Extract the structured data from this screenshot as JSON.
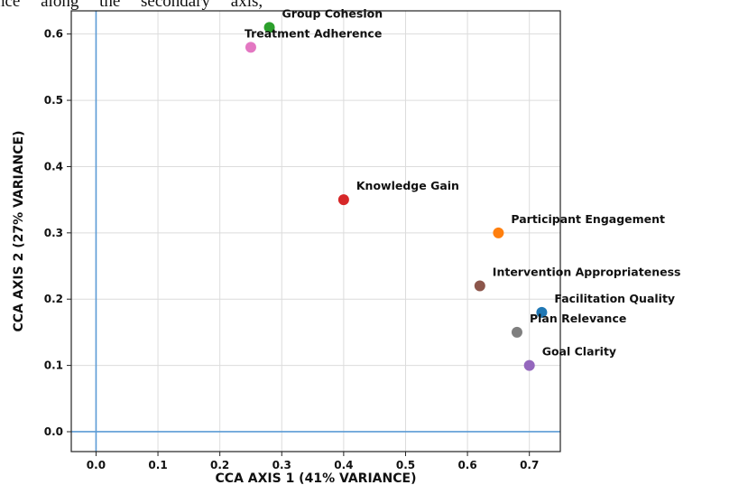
{
  "header_text": "nce along the secondary axis,",
  "chart_data": {
    "type": "scatter",
    "xlabel": "CCA AXIS 1 (41% VARIANCE)",
    "ylabel": "CCA AXIS 2 (27% VARIANCE)",
    "xlim": [
      -0.04,
      0.75
    ],
    "ylim": [
      -0.03,
      0.635
    ],
    "x_ticks": [
      0.0,
      0.1,
      0.2,
      0.3,
      0.4,
      0.5,
      0.6,
      0.7
    ],
    "x_tick_labels": [
      "0.0",
      "0.1",
      "0.2",
      "0.3",
      "0.4",
      "0.5",
      "0.6",
      "0.7"
    ],
    "y_ticks": [
      0.0,
      0.1,
      0.2,
      0.3,
      0.4,
      0.5,
      0.6
    ],
    "y_tick_labels": [
      "0.0",
      "0.1",
      "0.2",
      "0.3",
      "0.4",
      "0.5",
      "0.6"
    ],
    "grid": true,
    "reference_lines": {
      "x": 0,
      "y": 0,
      "color": "#5b9bd5"
    },
    "points": [
      {
        "label": "Group Cohesion",
        "x": 0.28,
        "y": 0.61,
        "color": "#2ca02c"
      },
      {
        "label": "Treatment Adherence",
        "x": 0.25,
        "y": 0.58,
        "color": "#e377c2"
      },
      {
        "label": "Knowledge Gain",
        "x": 0.4,
        "y": 0.35,
        "color": "#d62728"
      },
      {
        "label": "Participant Engagement",
        "x": 0.65,
        "y": 0.3,
        "color": "#ff7f0e"
      },
      {
        "label": "Intervention Appropriateness",
        "x": 0.62,
        "y": 0.22,
        "color": "#8c564b"
      },
      {
        "label": "Facilitation Quality",
        "x": 0.72,
        "y": 0.18,
        "color": "#1f77b4"
      },
      {
        "label": "Plan Relevance",
        "x": 0.68,
        "y": 0.15,
        "color": "#7f7f7f"
      },
      {
        "label": "Goal Clarity",
        "x": 0.7,
        "y": 0.1,
        "color": "#9467bd"
      }
    ]
  }
}
